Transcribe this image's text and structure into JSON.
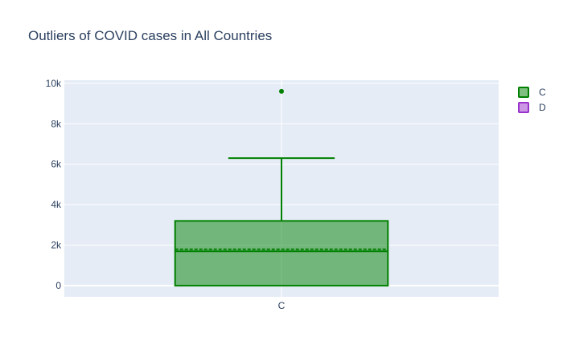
{
  "chart_data": {
    "type": "box",
    "title": "Outliers of COVID cases in All Countries",
    "xlabel": "",
    "ylabel": "",
    "categories": [
      "C"
    ],
    "ylim": [
      -550,
      10150
    ],
    "y_ticks": [
      0,
      2000,
      4000,
      6000,
      8000,
      10000
    ],
    "y_tick_labels": [
      "0",
      "2k",
      "4k",
      "6k",
      "8k",
      "10k"
    ],
    "grid": true,
    "legend_placement": "top-right",
    "series": [
      {
        "name": "C",
        "color": "#008000",
        "fill": "rgba(0,128,0,0.5)",
        "category": "C",
        "min": 0,
        "q1": 0,
        "median": 1700,
        "mean": 1800,
        "q3": 3200,
        "upper_fence": 6300,
        "outliers": [
          9600
        ]
      },
      {
        "name": "D",
        "color": "#9932cc",
        "fill": "rgba(153,50,204,0.5)"
      }
    ]
  }
}
